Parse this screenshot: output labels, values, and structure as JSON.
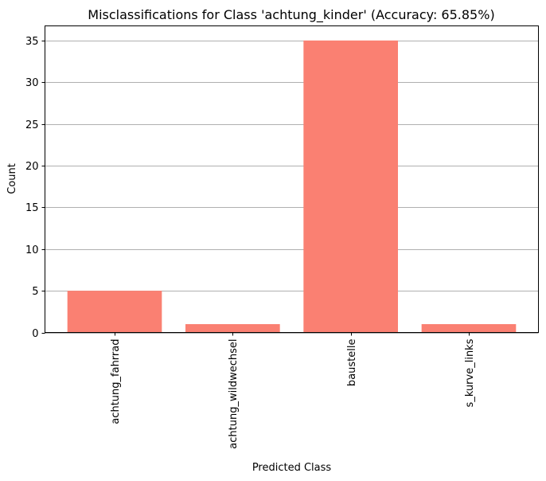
{
  "chart_data": {
    "type": "bar",
    "title": "Misclassifications for Class 'achtung_kinder' (Accuracy: 65.85%)",
    "xlabel": "Predicted Class",
    "ylabel": "Count",
    "categories": [
      "achtung_fahrrad",
      "achtung_wildwechsel",
      "baustelle",
      "s_kurve_links"
    ],
    "values": [
      5,
      1,
      35,
      1
    ],
    "ylim": [
      0,
      36.75
    ],
    "yticks": [
      0,
      5,
      10,
      15,
      20,
      25,
      30,
      35
    ],
    "grid": "y-major",
    "bar_color": "#fa8072",
    "grid_color": "#b0b0b0",
    "x_tick_rotation": "vertical"
  }
}
